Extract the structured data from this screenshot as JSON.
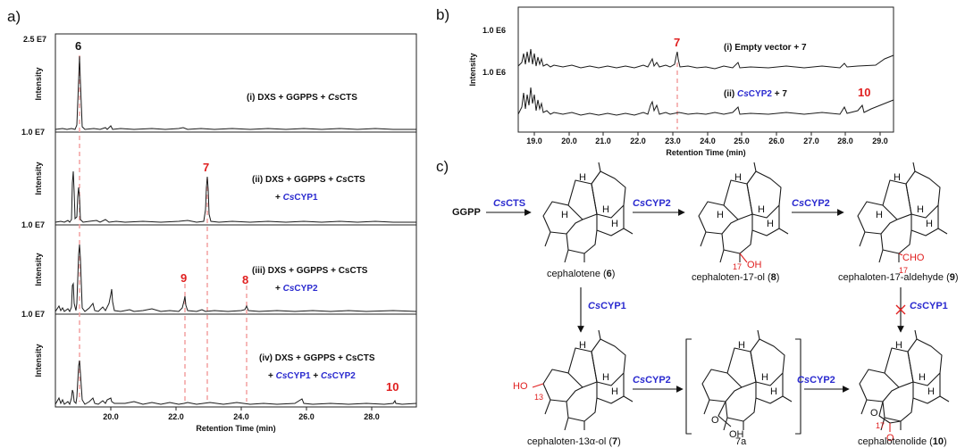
{
  "panel_labels": {
    "a": "a)",
    "b": "b)",
    "c": "c)"
  },
  "panel_a": {
    "y_axis_label": "Intensity",
    "x_axis_label": "Retention Time (min)",
    "x_ticks": [
      "20.0",
      "22.0",
      "24.0",
      "26.0",
      "28.0"
    ],
    "scale_top": "2.5 E7",
    "scale_rows": [
      "1.0 E7",
      "1.0 E7",
      "1.0 E7"
    ],
    "traces": [
      {
        "label_parts": [
          "(i) DXS + GGPPS + ",
          "Cs",
          "CTS"
        ]
      },
      {
        "label_parts": [
          "(ii) DXS + GGPPS + ",
          "Cs",
          "CTS"
        ],
        "label2_parts": [
          "+ ",
          "Cs",
          "CYP1"
        ]
      },
      {
        "label_parts": [
          "(iii) DXS + GGPPS + CsCTS"
        ],
        "label2_parts": [
          "+ ",
          "Cs",
          "CYP2"
        ]
      },
      {
        "label_parts": [
          "(iv) DXS + GGPPS + CsCTS"
        ],
        "label2_parts": [
          "+ ",
          "Cs",
          "CYP1",
          " + ",
          "Cs",
          "CYP2"
        ]
      }
    ],
    "peaks": {
      "p6": "6",
      "p7": "7",
      "p9": "9",
      "p8": "8",
      "p10": "10"
    }
  },
  "panel_b": {
    "y_axis_label": "Intensity",
    "x_axis_label": "Retention Time (min)",
    "scale_rows": [
      "1.0 E6",
      "1.0 E6"
    ],
    "x_ticks": [
      "19.0",
      "20.0",
      "21.0",
      "22.0",
      "23.0",
      "24.0",
      "25.0",
      "26.0",
      "27.0",
      "28.0",
      "29.0"
    ],
    "trace_labels": [
      {
        "parts": [
          "(i) Empty vector + 7"
        ]
      },
      {
        "parts": [
          "(ii) ",
          "Cs",
          "CYP2",
          " + 7"
        ]
      }
    ],
    "peaks": {
      "p7": "7",
      "p10": "10"
    }
  },
  "panel_c": {
    "ggpp": "GGPP",
    "enzymes": {
      "cts": [
        "Cs",
        "CTS"
      ],
      "cyp2a": [
        "Cs",
        "CYP2"
      ],
      "cyp2b": [
        "Cs",
        "CYP2"
      ],
      "cyp1a": [
        "Cs",
        "CYP1"
      ],
      "cyp1b": [
        "Cs",
        "CYP1"
      ],
      "cyp2c": [
        "Cs",
        "CYP2"
      ],
      "cyp2d": [
        "Cs",
        "CYP2"
      ]
    },
    "compounds": {
      "c6": {
        "name": "cephalotene (",
        "num": "6",
        "end": ")"
      },
      "c8": {
        "name": "cephaloten-17-ol (",
        "num": "8",
        "end": ")"
      },
      "c9": {
        "name": "cephaloten-17-aldehyde (",
        "num": "9",
        "end": ")"
      },
      "c7": {
        "name": "cephaloten-13α-ol (",
        "num": "7",
        "end": ")"
      },
      "c7a": {
        "num": "7a"
      },
      "c10": {
        "name": "cephalotenolide (",
        "num": "10",
        "end": ")"
      }
    },
    "atom_labels": {
      "H": "H",
      "OH": "OH",
      "CHO": "CHO",
      "HO": "HO",
      "O": "O",
      "n17": "17",
      "n13": "13"
    }
  },
  "colors": {
    "enzyme": "#2a2acf",
    "peak": "#e02020",
    "dash": "#f4a0a0"
  }
}
